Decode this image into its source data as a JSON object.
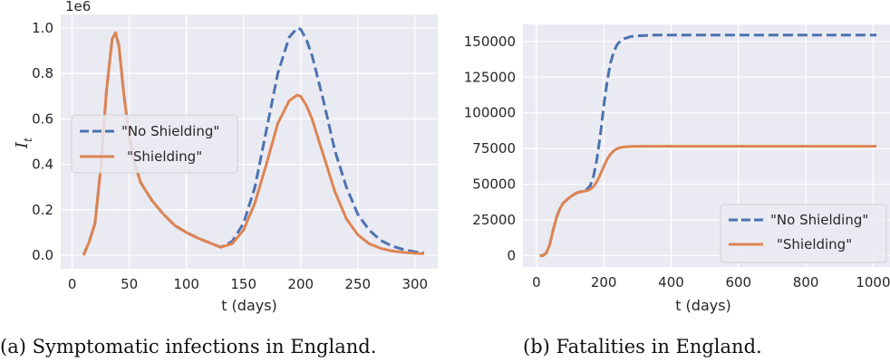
{
  "chart_data": [
    {
      "type": "line",
      "caption": "(a) Symptomatic infections in England.",
      "xlabel": "t (days)",
      "ylabel": "I",
      "ylabel_sub": "t",
      "offset_label": "1e6",
      "xlim": [
        -10,
        320
      ],
      "ylim": [
        -0.06,
        1.06
      ],
      "xticks": [
        0,
        50,
        100,
        150,
        200,
        250,
        300
      ],
      "yticks": [
        0.0,
        0.2,
        0.4,
        0.6,
        0.8,
        1.0
      ],
      "ytick_labels": [
        "0.0",
        "0.2",
        "0.4",
        "0.6",
        "0.8",
        "1.0"
      ],
      "grid": true,
      "legend_position": "center-left",
      "series": [
        {
          "name": "\"No Shielding\"",
          "style": "dashed",
          "color": "#4c72b0",
          "x": [
            10,
            15,
            20,
            25,
            30,
            35,
            38,
            41,
            45,
            50,
            55,
            60,
            70,
            80,
            90,
            100,
            110,
            120,
            130,
            140,
            150,
            160,
            170,
            180,
            190,
            197,
            200,
            205,
            210,
            220,
            230,
            240,
            250,
            260,
            270,
            280,
            290,
            300,
            308
          ],
          "y": [
            0.0,
            0.06,
            0.14,
            0.38,
            0.72,
            0.95,
            0.98,
            0.92,
            0.72,
            0.52,
            0.4,
            0.32,
            0.24,
            0.18,
            0.13,
            0.1,
            0.075,
            0.055,
            0.035,
            0.06,
            0.14,
            0.3,
            0.55,
            0.8,
            0.96,
            1.0,
            0.995,
            0.95,
            0.88,
            0.68,
            0.46,
            0.3,
            0.18,
            0.11,
            0.065,
            0.04,
            0.025,
            0.015,
            0.01
          ]
        },
        {
          "name": "\"Shielding\"",
          "style": "solid",
          "color": "#dd8452",
          "x": [
            10,
            15,
            20,
            25,
            30,
            35,
            38,
            41,
            45,
            50,
            55,
            60,
            70,
            80,
            90,
            100,
            110,
            120,
            130,
            140,
            150,
            160,
            170,
            180,
            190,
            197,
            200,
            205,
            210,
            220,
            230,
            240,
            250,
            260,
            270,
            280,
            290,
            300,
            308
          ],
          "y": [
            0.0,
            0.06,
            0.14,
            0.38,
            0.72,
            0.95,
            0.98,
            0.92,
            0.72,
            0.52,
            0.4,
            0.32,
            0.24,
            0.18,
            0.13,
            0.1,
            0.075,
            0.055,
            0.035,
            0.05,
            0.11,
            0.23,
            0.4,
            0.58,
            0.68,
            0.705,
            0.7,
            0.66,
            0.6,
            0.44,
            0.28,
            0.16,
            0.09,
            0.05,
            0.03,
            0.018,
            0.012,
            0.008,
            0.006
          ]
        }
      ]
    },
    {
      "type": "line",
      "caption": "(b) Fatalities in England.",
      "xlabel": "t (days)",
      "ylabel": "",
      "xlim": [
        -40,
        1050
      ],
      "ylim": [
        -8000,
        162000
      ],
      "xticks": [
        0,
        200,
        400,
        600,
        800,
        1000
      ],
      "yticks": [
        0,
        25000,
        50000,
        75000,
        100000,
        125000,
        150000
      ],
      "grid": true,
      "legend_position": "bottom-right",
      "series": [
        {
          "name": "\"No Shielding\"",
          "style": "dashed",
          "color": "#4c72b0",
          "x": [
            10,
            20,
            30,
            40,
            50,
            60,
            70,
            80,
            100,
            120,
            140,
            150,
            160,
            170,
            180,
            190,
            200,
            210,
            220,
            230,
            240,
            250,
            260,
            280,
            300,
            350,
            400,
            500,
            600,
            700,
            800,
            900,
            1010
          ],
          "y": [
            0,
            0,
            2000,
            8000,
            18000,
            27000,
            33000,
            37000,
            41000,
            44000,
            45500,
            46500,
            49000,
            56000,
            68000,
            85000,
            105000,
            122000,
            135000,
            143000,
            148000,
            150500,
            152000,
            153500,
            154000,
            154500,
            154500,
            154500,
            154500,
            154500,
            154500,
            154500,
            154500
          ]
        },
        {
          "name": "\"Shielding\"",
          "style": "solid",
          "color": "#dd8452",
          "x": [
            10,
            20,
            30,
            40,
            50,
            60,
            70,
            80,
            100,
            120,
            140,
            150,
            160,
            170,
            180,
            190,
            200,
            210,
            220,
            230,
            240,
            250,
            260,
            280,
            300,
            350,
            400,
            500,
            600,
            700,
            800,
            900,
            1010
          ],
          "y": [
            0,
            0,
            2000,
            8000,
            18000,
            27000,
            33000,
            37000,
            41000,
            44000,
            45000,
            45500,
            46500,
            48500,
            52000,
            57000,
            62500,
            67500,
            71000,
            73500,
            75000,
            75700,
            76100,
            76400,
            76500,
            76600,
            76600,
            76600,
            76600,
            76600,
            76600,
            76600,
            76600
          ]
        }
      ]
    }
  ]
}
